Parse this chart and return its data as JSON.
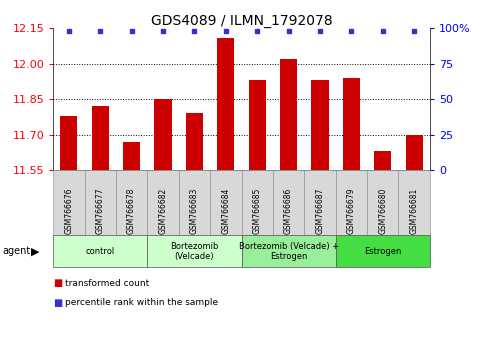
{
  "title": "GDS4089 / ILMN_1792078",
  "samples": [
    "GSM766676",
    "GSM766677",
    "GSM766678",
    "GSM766682",
    "GSM766683",
    "GSM766684",
    "GSM766685",
    "GSM766686",
    "GSM766687",
    "GSM766679",
    "GSM766680",
    "GSM766681"
  ],
  "bar_values": [
    11.78,
    11.82,
    11.67,
    11.85,
    11.79,
    12.11,
    11.93,
    12.02,
    11.93,
    11.94,
    11.63,
    11.7
  ],
  "bar_color": "#cc0000",
  "percentile_color": "#3333cc",
  "ylim_left": [
    11.55,
    12.15
  ],
  "ylim_right": [
    0,
    100
  ],
  "yticks_left": [
    11.55,
    11.7,
    11.85,
    12.0,
    12.15
  ],
  "yticks_right": [
    0,
    25,
    50,
    75,
    100
  ],
  "ytick_labels_right": [
    "0",
    "25",
    "50",
    "75",
    "100%"
  ],
  "gridlines": [
    11.7,
    11.85,
    12.0
  ],
  "groups": [
    {
      "label": "control",
      "start": 0,
      "end": 3,
      "color": "#ccffcc"
    },
    {
      "label": "Bortezomib\n(Velcade)",
      "start": 3,
      "end": 6,
      "color": "#ccffcc"
    },
    {
      "label": "Bortezomib (Velcade) +\nEstrogen",
      "start": 6,
      "end": 9,
      "color": "#99ee99"
    },
    {
      "label": "Estrogen",
      "start": 9,
      "end": 12,
      "color": "#44dd44"
    }
  ],
  "legend_items": [
    {
      "color": "#cc0000",
      "label": "transformed count"
    },
    {
      "color": "#3333cc",
      "label": "percentile rank within the sample"
    }
  ],
  "title_fontsize": 10,
  "tick_fontsize": 8,
  "bar_width": 0.55
}
